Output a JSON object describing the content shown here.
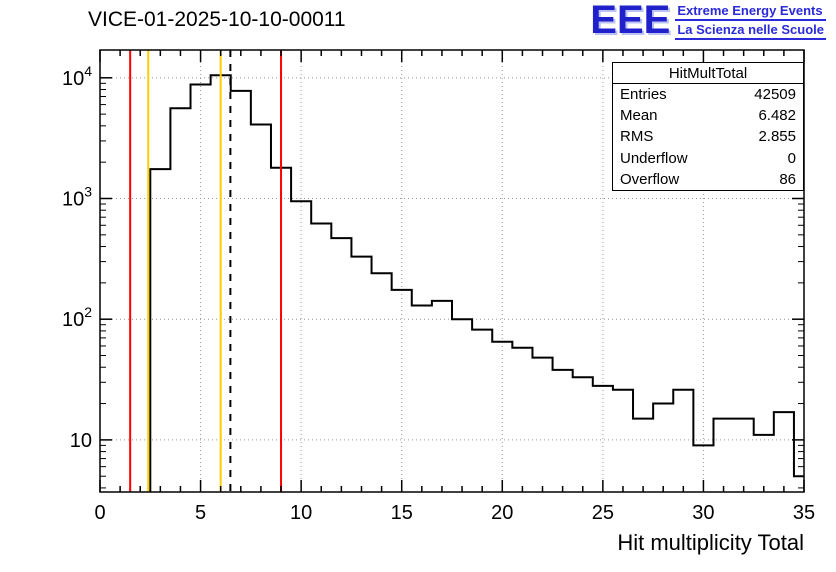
{
  "title": "VICE-01-2025-10-10-00011",
  "logo": {
    "acronym": "EEE",
    "line1": "Extreme Energy Events",
    "line2": "La Scienza nelle Scuole",
    "color": "#2121cc"
  },
  "stats_box": {
    "title": "HitMultTotal",
    "rows": [
      {
        "label": "Entries",
        "value": "42509"
      },
      {
        "label": "Mean",
        "value": "6.482"
      },
      {
        "label": "RMS",
        "value": "2.855"
      },
      {
        "label": "Underflow",
        "value": "0"
      },
      {
        "label": "Overflow",
        "value": "86"
      }
    ]
  },
  "chart_data": {
    "type": "bar",
    "histogram": true,
    "title": "VICE-01-2025-10-10-00011",
    "xlabel": "Hit multiplicity Total",
    "ylabel": "",
    "xlim": [
      0,
      35
    ],
    "ylim": [
      3.7,
      17000
    ],
    "yscale": "log",
    "grid": true,
    "x_major_ticks": [
      0,
      5,
      10,
      15,
      20,
      25,
      30,
      35
    ],
    "y_major_ticks": [
      10,
      100,
      1000,
      10000
    ],
    "x_start": 2.5,
    "bin_width": 1,
    "counts": [
      1750,
      5600,
      8800,
      10500,
      7800,
      4100,
      1800,
      950,
      620,
      470,
      330,
      240,
      175,
      130,
      142,
      100,
      82,
      65,
      58,
      48,
      38,
      33,
      28,
      26,
      15,
      20,
      26,
      9,
      15,
      15,
      11,
      17,
      5
    ],
    "line_color": "#000000",
    "marker_lines": [
      {
        "x": 1.5,
        "color": "#ff0000",
        "style": "solid"
      },
      {
        "x": 2.4,
        "color": "#ffcc00",
        "style": "solid"
      },
      {
        "x": 6.0,
        "color": "#ffcc00",
        "style": "solid"
      },
      {
        "x": 6.482,
        "color": "#000000",
        "style": "dashed"
      },
      {
        "x": 9.0,
        "color": "#ff0000",
        "style": "solid"
      }
    ]
  }
}
